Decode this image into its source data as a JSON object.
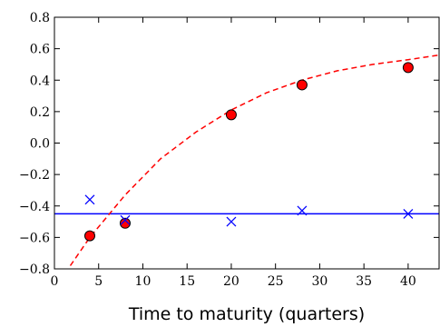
{
  "chart_data": {
    "type": "scatter",
    "title": "",
    "xlabel": "Time to maturity (quarters)",
    "ylabel": "",
    "xlim": [
      0,
      43.5
    ],
    "ylim": [
      -0.8,
      0.8
    ],
    "grid": false,
    "legend": "none",
    "x_ticks": [
      0,
      5,
      10,
      15,
      20,
      25,
      30,
      35,
      40
    ],
    "x_tick_labels": [
      "0",
      "5",
      "10",
      "15",
      "20",
      "25",
      "30",
      "35",
      "40"
    ],
    "y_ticks": [
      -0.8,
      -0.6,
      -0.4,
      -0.2,
      0.0,
      0.2,
      0.4,
      0.6,
      0.8
    ],
    "y_tick_labels": [
      "−0.8",
      "−0.6",
      "−0.4",
      "−0.2",
      "0.0",
      "0.2",
      "0.4",
      "0.6",
      "0.8"
    ],
    "series": [
      {
        "kind": "scatter",
        "marker": "circle",
        "color": "#ff0000",
        "x": [
          4,
          8,
          20,
          28,
          40
        ],
        "y": [
          -0.59,
          -0.51,
          0.18,
          0.37,
          0.48
        ]
      },
      {
        "kind": "scatter",
        "marker": "x",
        "color": "#0000ff",
        "x": [
          4,
          8,
          20,
          28,
          40
        ],
        "y": [
          -0.36,
          -0.49,
          -0.5,
          -0.43,
          -0.45
        ]
      },
      {
        "kind": "line",
        "style": "solid",
        "color": "#0000ff",
        "x": [
          0,
          43.5
        ],
        "y": [
          -0.45,
          -0.45
        ]
      },
      {
        "kind": "line",
        "style": "dashed",
        "color": "#ff0000",
        "x": [
          1.8,
          4,
          8,
          12,
          16,
          20,
          24,
          28,
          32,
          36,
          40,
          43.5
        ],
        "y": [
          -0.78,
          -0.6,
          -0.33,
          -0.1,
          0.07,
          0.21,
          0.32,
          0.4,
          0.46,
          0.5,
          0.53,
          0.56
        ]
      }
    ]
  }
}
